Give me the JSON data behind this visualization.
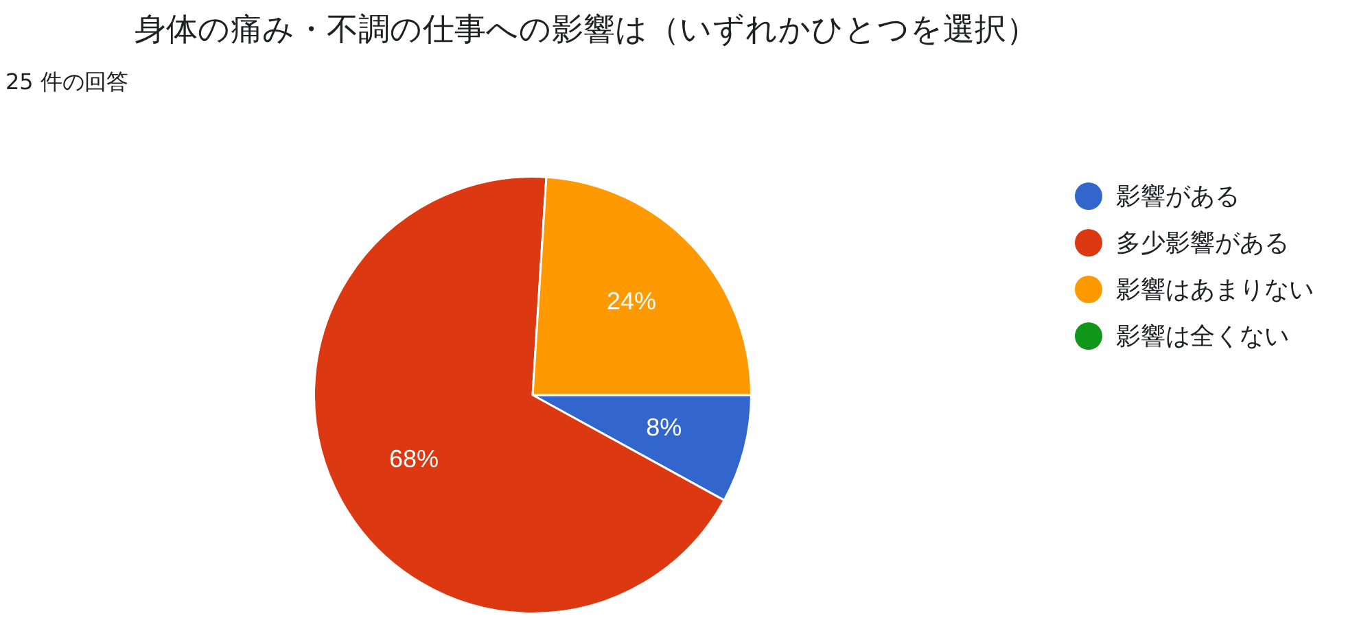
{
  "chart_data": {
    "type": "pie",
    "title": "身体の痛み・不調の仕事への影響は（いずれかひとつを選択）",
    "subtitle": "25 件の回答",
    "categories": [
      "影響がある",
      "多少影響がある",
      "影響はあまりない",
      "影響は全くない"
    ],
    "values": [
      8,
      68,
      24,
      0
    ],
    "colors": [
      "#3366cc",
      "#dc3912",
      "#ff9900",
      "#109618"
    ],
    "value_labels": [
      "8%",
      "68%",
      "24%",
      null
    ],
    "legend": "right"
  }
}
